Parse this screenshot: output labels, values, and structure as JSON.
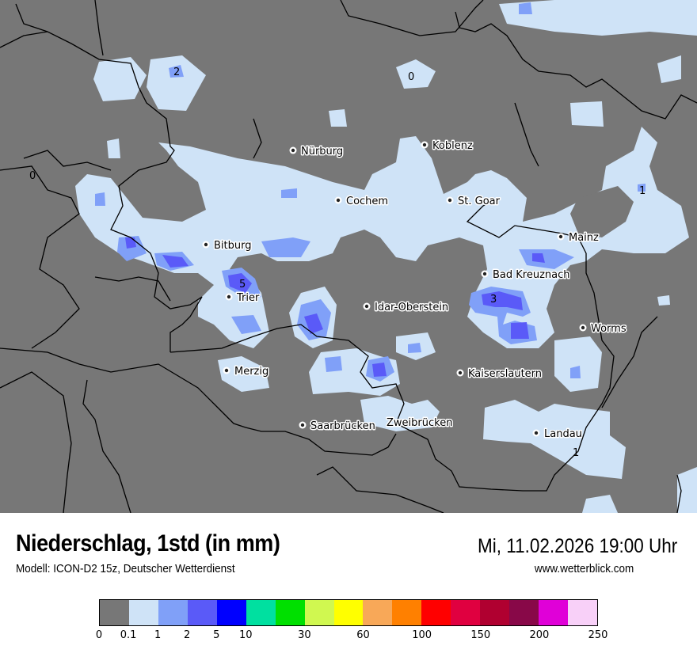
{
  "header": {
    "title": "Niederschlag, 1std (in mm)",
    "subtitle": "Modell: ICON-D2 15z, Deutscher Wetterdienst",
    "datetime": "Mi, 11.02.2026 19:00 Uhr",
    "website": "www.wetterblick.com"
  },
  "map": {
    "background_color": "#777777",
    "cities": [
      {
        "name": "Nürburg"
      },
      {
        "name": "Koblenz"
      },
      {
        "name": "Cochem"
      },
      {
        "name": "St. Goar"
      },
      {
        "name": "Mainz"
      },
      {
        "name": "Bitburg"
      },
      {
        "name": "Bad Kreuznach"
      },
      {
        "name": "Trier"
      },
      {
        "name": "Idar-Oberstein"
      },
      {
        "name": "Worms"
      },
      {
        "name": "Merzig"
      },
      {
        "name": "Kaiserslautern"
      },
      {
        "name": "Saarbrücken"
      },
      {
        "name": "Zweibrücken"
      },
      {
        "name": "Landau"
      }
    ],
    "peak_labels": [
      "2",
      "0",
      "0",
      "1",
      "5",
      "3",
      "1"
    ]
  },
  "legend": {
    "colors": [
      "#777777",
      "#cfe3f7",
      "#80a0f8",
      "#5a5af8",
      "#0000ff",
      "#00e0a0",
      "#00e000",
      "#d0f850",
      "#ffff00",
      "#f8a858",
      "#ff8000",
      "#ff0000",
      "#e00040",
      "#b00030",
      "#880848",
      "#e000d8",
      "#f8d0f8"
    ],
    "ticks": [
      {
        "label": "0",
        "index": 0
      },
      {
        "label": "0.1",
        "index": 1
      },
      {
        "label": "1",
        "index": 2
      },
      {
        "label": "2",
        "index": 3
      },
      {
        "label": "5",
        "index": 4
      },
      {
        "label": "10",
        "index": 5
      },
      {
        "label": "30",
        "index": 7
      },
      {
        "label": "60",
        "index": 9
      },
      {
        "label": "100",
        "index": 11
      },
      {
        "label": "150",
        "index": 13
      },
      {
        "label": "200",
        "index": 15
      },
      {
        "label": "250",
        "index": 17
      }
    ]
  }
}
